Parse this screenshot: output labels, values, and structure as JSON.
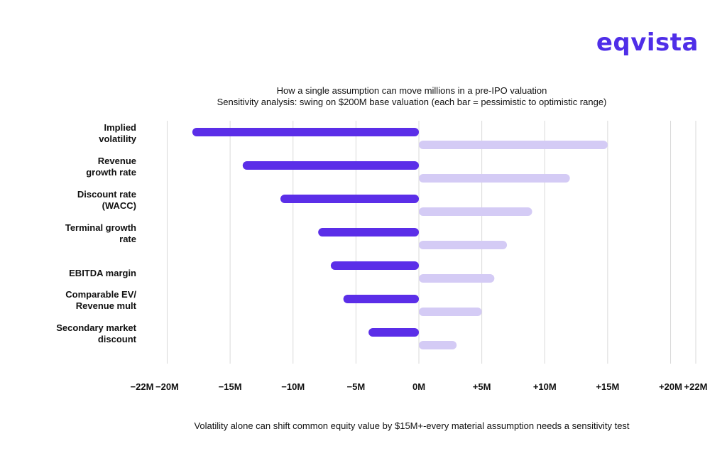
{
  "brand": {
    "name": "eqvista",
    "color": "#4f2ee8"
  },
  "chart_data": {
    "type": "bar",
    "orientation": "horizontal",
    "title": "How a single assumption can move millions in a pre-IPO valuation",
    "subtitle": "Sensitivity analysis: swing on $200M base valuation (each bar = pessimistic to optimistic range)",
    "categories": [
      [
        "Implied",
        "volatility"
      ],
      [
        "Revenue",
        "growth rate"
      ],
      [
        "Discount rate",
        "(WACC)"
      ],
      [
        "Terminal growth",
        "rate"
      ],
      [
        "EBITDA margin"
      ],
      [
        "Comparable EV/",
        "Revenue mult"
      ],
      [
        "Secondary market",
        "discount"
      ]
    ],
    "series": [
      {
        "name": "Pessimistic",
        "color": "#5b2ee8",
        "values": [
          -18,
          -14,
          -11,
          -8,
          -7,
          -6,
          -4
        ]
      },
      {
        "name": "Optimistic",
        "color": "#d4cbf5",
        "values": [
          15,
          12,
          9,
          7,
          6,
          5,
          3
        ]
      }
    ],
    "xlim": [
      -22,
      22
    ],
    "xticks": [
      -22,
      -20,
      -15,
      -10,
      -5,
      0,
      5,
      10,
      15,
      20,
      22
    ],
    "xtick_labels": [
      "−22M",
      "−20M",
      "−15M",
      "−10M",
      "−5M",
      "0M",
      "+5M",
      "+10M",
      "+15M",
      "+20M",
      "+22M"
    ],
    "gridlines": [
      -20,
      -15,
      -10,
      -5,
      0,
      5,
      10,
      15,
      20,
      22
    ],
    "xlabel": "",
    "ylabel": "",
    "grid": true,
    "legend": "none"
  },
  "footnote": "Volatility alone can shift common equity value by $15M+-every material assumption needs a sensitivity test"
}
